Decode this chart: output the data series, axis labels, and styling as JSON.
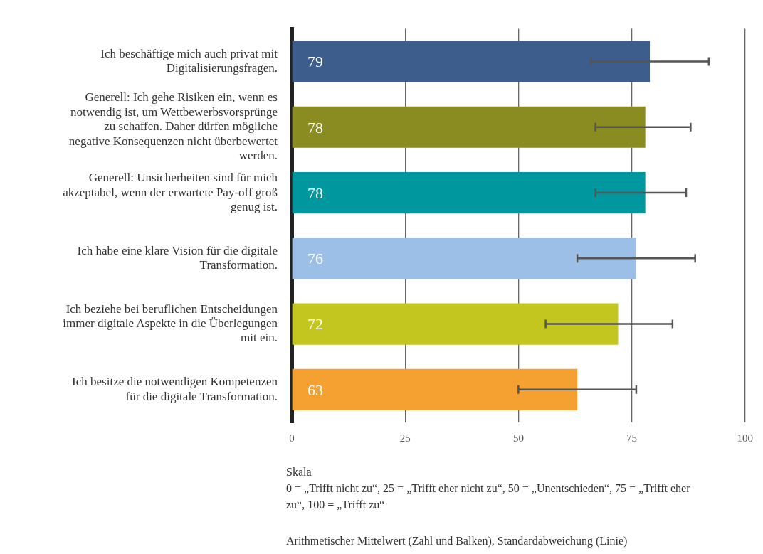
{
  "chart_data": {
    "type": "bar",
    "orientation": "horizontal",
    "categories": [
      "Ich beschäftige mich auch privat mit Digitalisierungsfragen.",
      "Generell: Ich gehe Risiken ein, wenn es notwendig ist, um Wettbewerbsvorsprünge zu schaffen. Daher dürfen mögliche negative Konsequenzen nicht überbewertet werden.",
      "Generell: Unsicherheiten sind für mich akzeptabel, wenn der erwartete Pay-off groß genug ist.",
      "Ich habe eine klare Vision für die digitale Transformation.",
      "Ich beziehe bei beruflichen Entscheidungen immer digitale Aspekte in die Überlegungen mit ein.",
      "Ich besitze die notwendigen Kompetenzen für die digitale Transformation."
    ],
    "values": [
      79,
      78,
      78,
      76,
      72,
      63
    ],
    "colors": [
      "#3d5e8c",
      "#8a8c22",
      "#00979e",
      "#9bbfe6",
      "#c3c61e",
      "#f5a132"
    ],
    "errors": [
      [
        66,
        92
      ],
      [
        67,
        88
      ],
      [
        67,
        87
      ],
      [
        63,
        89
      ],
      [
        56,
        84
      ],
      [
        50,
        76
      ]
    ],
    "data_labels": true,
    "xlim": [
      0,
      100
    ],
    "xticks": [
      0,
      25,
      50,
      75,
      100
    ],
    "grid": "x",
    "legend": false,
    "annotations": [
      "Skala",
      "0 = „Trifft nicht zu“, 25 = „Trifft eher nicht zu“, 50 = „Unentschieden“, 75 = „Trifft eher zu“, 100 = „Trifft zu“",
      "Arithmetischer Mittelwert (Zahl und Balken), Standardabweichung (Linie)"
    ]
  }
}
